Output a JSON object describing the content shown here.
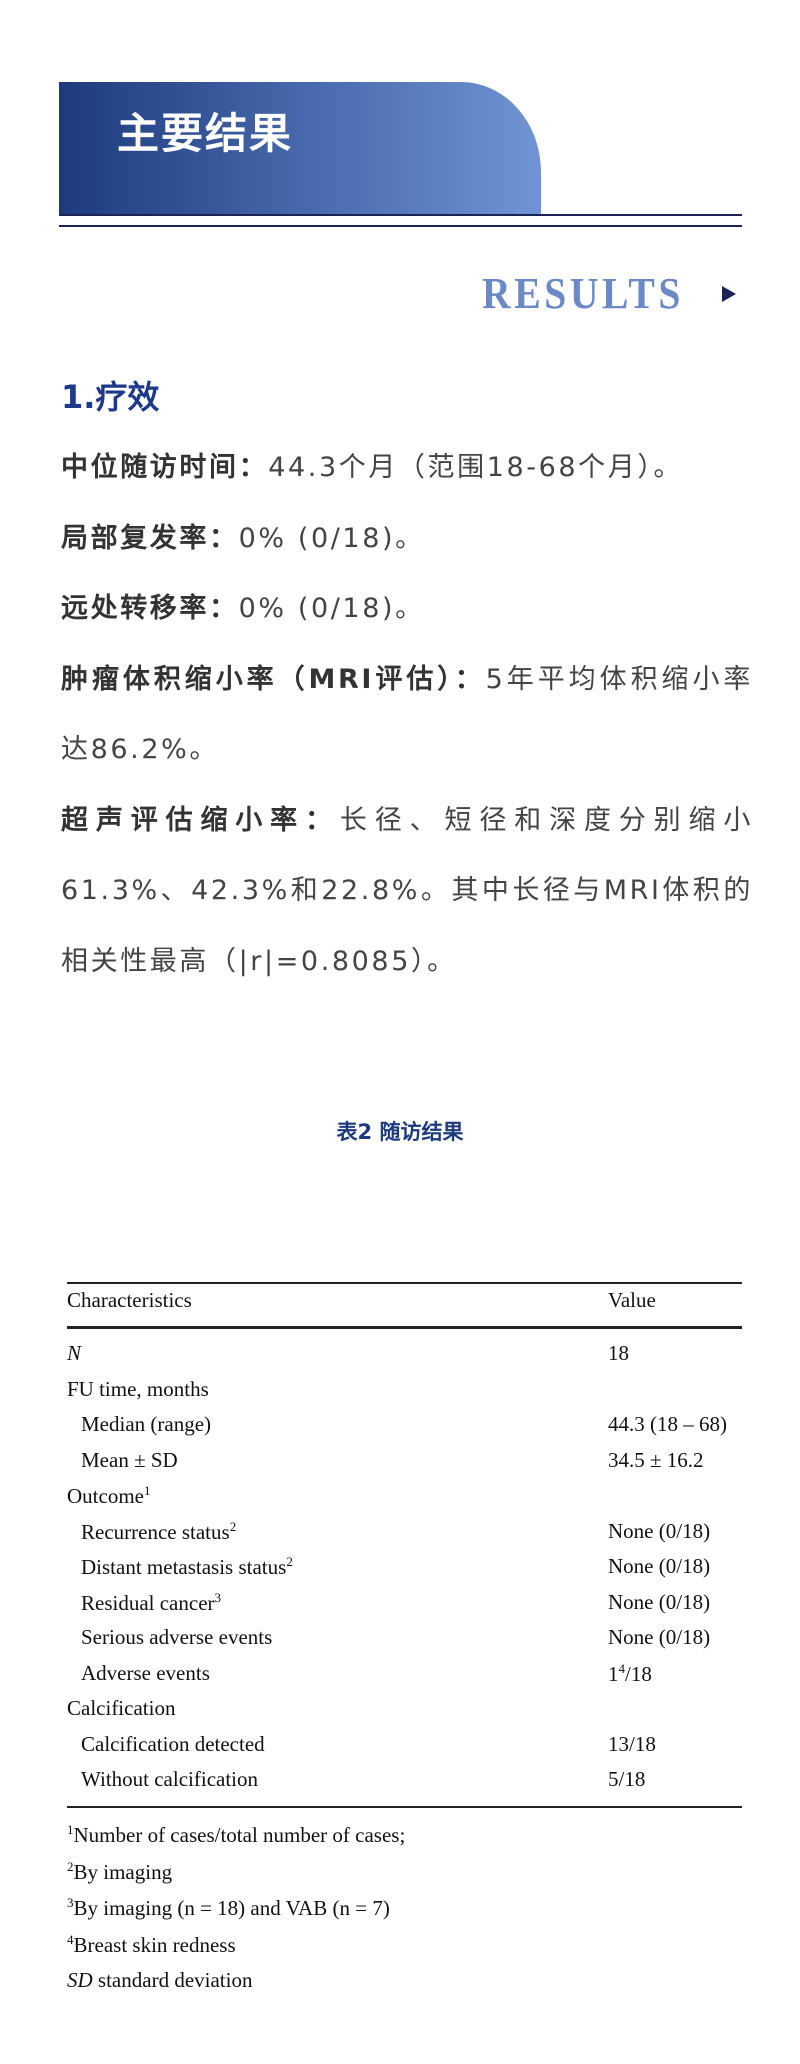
{
  "header": {
    "title_cn": "主要结果",
    "title_en": "RESULTS",
    "arrow_icon": "triangle-right-icon",
    "accent": "#1d3a7e"
  },
  "section": {
    "title": "1.疗效",
    "items": [
      {
        "label": "中位随访时间：",
        "text": "44.3个月（范围18-68个月）。"
      },
      {
        "label": "局部复发率：",
        "text": "0% (0/18)。"
      },
      {
        "label": "远处转移率：",
        "text": "0% (0/18)。"
      },
      {
        "label": "肿瘤体积缩小率（MRI评估）：",
        "text": "5年平均体积缩小率达86.2%。"
      },
      {
        "label": "超声评估缩小率：",
        "text": "长径、短径和深度分别缩小61.3%、42.3%和22.8%。其中长径与MRI体积的相关性最高（|r|=0.8085）。"
      }
    ]
  },
  "table": {
    "caption": "表2 随访结果",
    "headers": [
      "Characteristics",
      "Value"
    ],
    "rows": [
      {
        "label": "N",
        "sup": "",
        "value": "18",
        "vsup": "",
        "vrest": ""
      },
      {
        "label": "FU time, months",
        "sup": "",
        "value": "",
        "vsup": "",
        "vrest": ""
      },
      {
        "label": "Median (range)",
        "sup": "",
        "value": "44.3 (18 – 68)",
        "vsup": "",
        "vrest": ""
      },
      {
        "label": "Mean ± SD",
        "sup": "",
        "value": "34.5 ± 16.2",
        "vsup": "",
        "vrest": ""
      },
      {
        "label": "Outcome",
        "sup": "1",
        "value": "",
        "vsup": "",
        "vrest": ""
      },
      {
        "label": "Recurrence status",
        "sup": "2",
        "value": "None (0/18)",
        "vsup": "",
        "vrest": ""
      },
      {
        "label": "Distant metastasis status",
        "sup": "2",
        "value": "None (0/18)",
        "vsup": "",
        "vrest": ""
      },
      {
        "label": "Residual cancer",
        "sup": "3",
        "value": "None (0/18)",
        "vsup": "",
        "vrest": ""
      },
      {
        "label": "Serious adverse events",
        "sup": "",
        "value": "None (0/18)",
        "vsup": "",
        "vrest": ""
      },
      {
        "label": "Adverse events",
        "sup": "",
        "value": "1",
        "vsup": "4",
        "vrest": "/18"
      },
      {
        "label": "Calcification",
        "sup": "",
        "value": "",
        "vsup": "",
        "vrest": ""
      },
      {
        "label": "Calcification detected",
        "sup": "",
        "value": "13/18",
        "vsup": "",
        "vrest": ""
      },
      {
        "label": "Without calcification",
        "sup": "",
        "value": "5/18",
        "vsup": "",
        "vrest": ""
      }
    ],
    "footnotes": [
      {
        "mark": "1",
        "text": "Number of cases/total number of cases;"
      },
      {
        "mark": "2",
        "text": "By imaging"
      },
      {
        "mark": "3",
        "text": "By imaging (n = 18) and VAB (n = 7)"
      },
      {
        "mark": "4",
        "text": "Breast skin redness"
      },
      {
        "mark": "SD",
        "text": " standard deviation"
      }
    ]
  }
}
